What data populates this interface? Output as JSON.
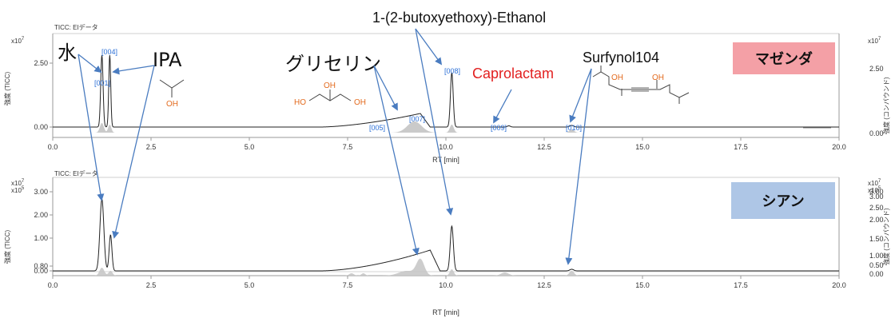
{
  "chart_data": [
    {
      "type": "line",
      "panel": "top",
      "header": "TICC: EIデータ",
      "xlabel": "RT [min]",
      "ylabel": "強度 (TICC)",
      "ylabel_right": "強度 (コンパウンド)",
      "y_exponent": "x10",
      "y_exponent_power": "7",
      "x_ticks": [
        "0.0",
        "2.5",
        "5.0",
        "7.5",
        "10.0",
        "12.5",
        "15.0",
        "17.5",
        "20.0"
      ],
      "y_ticks": [
        "0.00",
        "2.50"
      ],
      "y_ticks_right": [
        "0.00",
        "2.50"
      ],
      "xlim": [
        0,
        20
      ],
      "sample_label": "マゼンダ",
      "sample_color": "#f4a0a6",
      "peak_labels": [
        {
          "text": "[004]",
          "rt": 1.45
        },
        {
          "text": "[001]",
          "rt": 1.25
        },
        {
          "text": "[005]",
          "rt": 7.9
        },
        {
          "text": "[007]",
          "rt": 9.35
        },
        {
          "text": "[008]",
          "rt": 10.15
        },
        {
          "text": "[009]",
          "rt": 11.6
        },
        {
          "text": "[010]",
          "rt": 13.2
        }
      ]
    },
    {
      "type": "line",
      "panel": "bottom",
      "header": "TICC: EIデータ",
      "xlabel": "RT [min]",
      "ylabel": "強度 (TICC)",
      "ylabel_right": "強度 (コンパウンド)",
      "y_exponent": "x10",
      "y_exponent_power": "7",
      "y_exponent2": "x10",
      "y_exponent2_power": "5",
      "x_ticks": [
        "0.0",
        "2.5",
        "5.0",
        "7.5",
        "10.0",
        "12.5",
        "15.0",
        "17.5",
        "20.0"
      ],
      "y_ticks": [
        "0.00",
        "0.80",
        "1.00",
        "2.00",
        "3.00"
      ],
      "y_ticks_right": [
        "0.00",
        "0.50",
        "1.00",
        "1.50",
        "2.00",
        "2.50",
        "3.00",
        "3.00"
      ],
      "xlim": [
        0,
        20
      ],
      "sample_label": "シアン",
      "sample_color": "#aec6e6"
    }
  ],
  "annotations": {
    "water": "水",
    "ipa": "IPA",
    "glycerin": "グリセリン",
    "butoxy": "1-(2-butoxyethoxy)-Ethanol",
    "caprolactam": "Caprolactam",
    "surfynol": "Surfynol104",
    "oh": "OH",
    "ho": "HO"
  }
}
